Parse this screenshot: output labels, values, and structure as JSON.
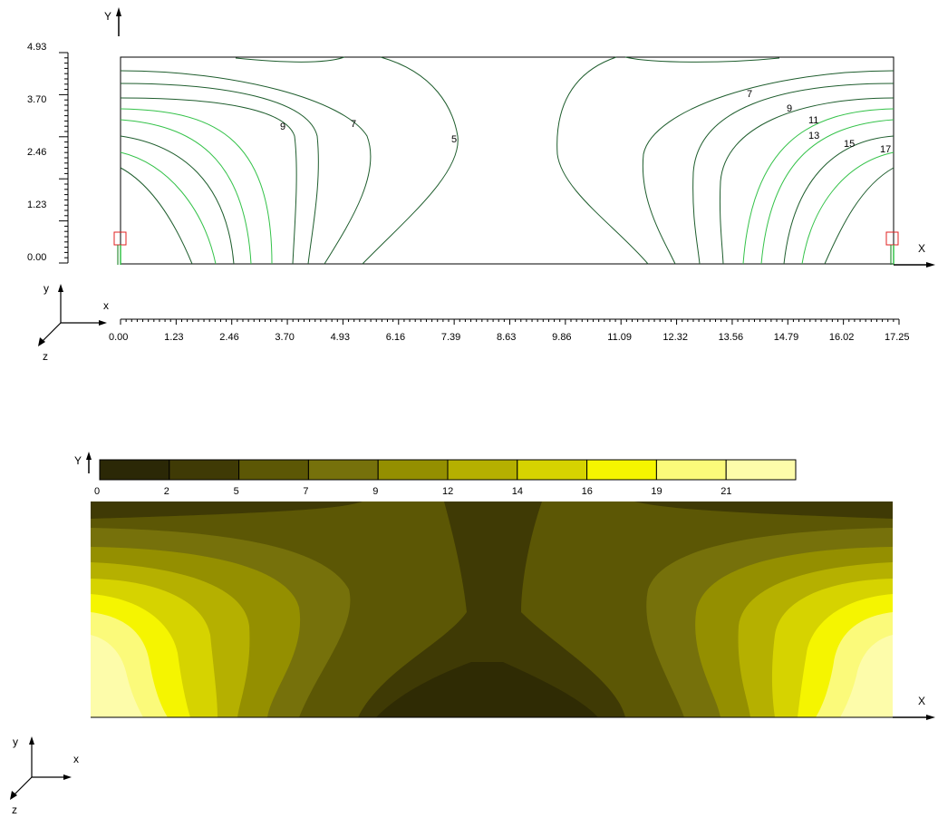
{
  "top_view": {
    "y_axis_title": "Y",
    "x_axis_title": "X",
    "y_ticks": [
      "0.00",
      "1.23",
      "2.46",
      "3.70",
      "4.93"
    ],
    "x_ticks": [
      "0.00",
      "1.23",
      "2.46",
      "3.70",
      "4.93",
      "6.16",
      "7.39",
      "8.63",
      "9.86",
      "11.09",
      "12.32",
      "13.56",
      "14.79",
      "16.02",
      "17.25"
    ],
    "contour_labels_left": [
      "9",
      "7",
      "5"
    ],
    "contour_labels_right": [
      "7",
      "9",
      "11",
      "13",
      "15",
      "17"
    ],
    "triad": {
      "y": "y",
      "x": "x",
      "z": "z"
    }
  },
  "bottom_view": {
    "y_axis_title": "Y",
    "x_axis_title": "X",
    "legend": {
      "labels": [
        "0",
        "2",
        "5",
        "7",
        "9",
        "12",
        "14",
        "16",
        "19",
        "21"
      ],
      "colors": [
        "#2b2806",
        "#3f3a05",
        "#5c5705",
        "#76710b",
        "#948f00",
        "#b5b000",
        "#d6d300",
        "#f5f500",
        "#fbfa7a",
        "#fdfcaa"
      ]
    },
    "triad": {
      "y": "y",
      "x": "x",
      "z": "z"
    }
  },
  "colors": {
    "contour_dark": "#1e5d2d",
    "contour_light": "#34c249",
    "support_marker": "#e02020",
    "outline": "#000000"
  }
}
